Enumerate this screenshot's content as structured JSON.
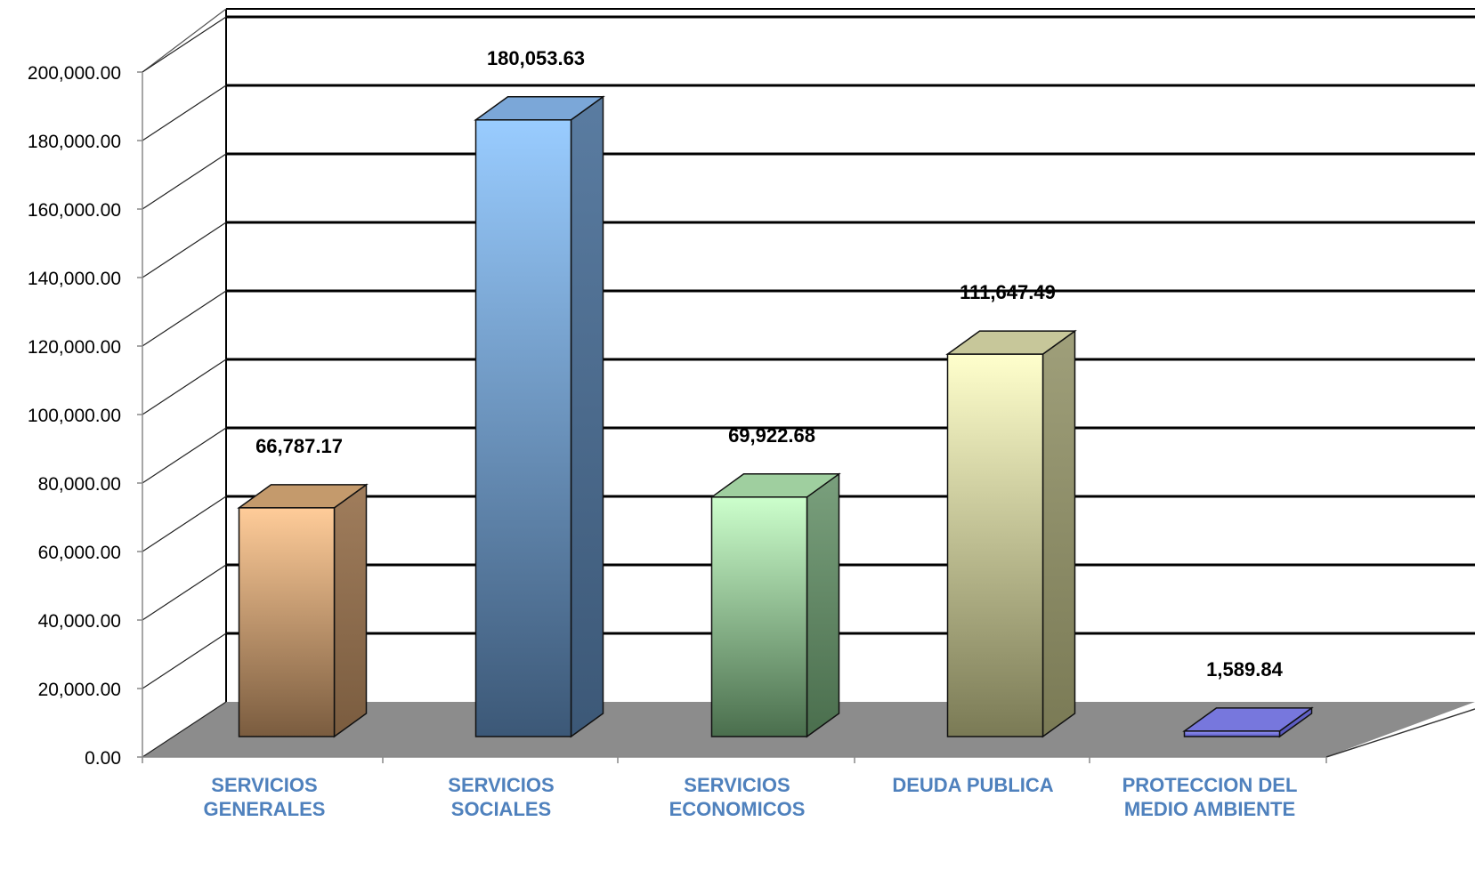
{
  "chart_data": {
    "type": "bar",
    "title": "",
    "xlabel": "",
    "ylabel": "",
    "ylim": [
      0,
      200000
    ],
    "ytick_values": [
      0,
      20000,
      40000,
      60000,
      80000,
      100000,
      120000,
      140000,
      160000,
      180000,
      200000
    ],
    "ytick_labels": [
      "0.00",
      "20,000.00",
      "40,000.00",
      "60,000.00",
      "80,000.00",
      "100,000.00",
      "120,000.00",
      "140,000.00",
      "160,000.00",
      "180,000.00",
      "200,000.00"
    ],
    "grid": true,
    "legend": "none",
    "three_d": true,
    "categories": [
      [
        "SERVICIOS",
        "GENERALES"
      ],
      [
        "SERVICIOS",
        "SOCIALES"
      ],
      [
        "SERVICIOS",
        "ECONOMICOS"
      ],
      [
        "DEUDA PUBLICA"
      ],
      [
        "PROTECCION DEL",
        "MEDIO AMBIENTE"
      ]
    ],
    "values": [
      66787.17,
      180053.63,
      69922.68,
      111647.49,
      1589.84
    ],
    "data_labels": [
      "66,787.17",
      "180,053.63",
      "69,922.68",
      "111,647.49",
      "1,589.84"
    ],
    "colors": {
      "bars": [
        [
          "#ffcc99",
          "#7a5c3f",
          "#c49a6c",
          "#a07d5c"
        ],
        [
          "#99ccff",
          "#3c5877",
          "#7ba7d8",
          "#5a7ca1"
        ],
        [
          "#ccffcc",
          "#4a6e4d",
          "#9fcf9f",
          "#7aa07d"
        ],
        [
          "#ffffcc",
          "#7a7a55",
          "#c7c79a",
          "#9f9f7a"
        ],
        [
          "#9999ff",
          "#5555bb",
          "#7777dd",
          "#6666cc"
        ]
      ],
      "category_label": "#4f81bd",
      "floor": "#8c8c8c",
      "grid": "#000000"
    }
  }
}
